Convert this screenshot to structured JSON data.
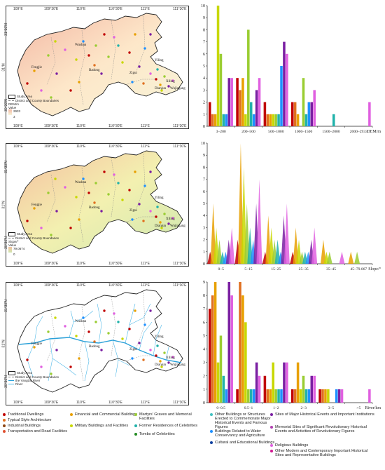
{
  "maps": [
    {
      "id": "dem",
      "top_ticks": [
        "109°E",
        "109°30'E",
        "110°E",
        "110°30'E",
        "111°E",
        "111°30'E"
      ],
      "bottom_ticks": [
        "109°E",
        "109°30'E",
        "110°E",
        "110°30'E",
        "111°E",
        "111°30'E"
      ],
      "left_ticks": [
        "31°30'N",
        "31°N",
        "30°30'N"
      ],
      "place_names": [
        "Wushan",
        "Fengjie",
        "Badong",
        "Zigui",
        "Yiling",
        "Dianjun",
        "Xiling",
        "Wujiagang"
      ],
      "legend": [
        "Study Area",
        "District and County Boundaries",
        "DEM/m",
        "Value",
        "2933",
        "3"
      ],
      "ramp": [
        "#f3b7a4",
        "#fde7c9",
        "#f7f5d9"
      ]
    },
    {
      "id": "slope",
      "top_ticks": [
        "109°E",
        "109°30'E",
        "110°E",
        "110°30'E",
        "111°E",
        "111°30'E"
      ],
      "bottom_ticks": [
        "109°E",
        "109°30'E",
        "110°E",
        "110°30'E",
        "111°E",
        "111°30'E"
      ],
      "left_ticks": [
        "31°30'N",
        "31°N",
        "30°30'N"
      ],
      "place_names": [
        "Wushan",
        "Fengjie",
        "Badong",
        "Zigui",
        "Yiling",
        "Dianjun",
        "Xiling",
        "Wujiagang"
      ],
      "legend": [
        "Study Area",
        "District and County Boundaries",
        "Slope/°",
        "Value",
        "79.0674",
        "0"
      ],
      "ramp": [
        "#f5c0a0",
        "#f3f0b0",
        "#cfe8b0"
      ]
    },
    {
      "id": "river",
      "top_ticks": [
        "109°E",
        "109°30'E",
        "110°E",
        "110°30'E",
        "111°E",
        "111°30'E"
      ],
      "bottom_ticks": [
        "109°E",
        "109°30'E",
        "110°E",
        "110°30'E",
        "111°E",
        "111°30'E"
      ],
      "left_ticks": [
        "31°30'N",
        "31°N",
        "30°30'N"
      ],
      "place_names": [
        "Wushan",
        "Fengjie",
        "Badong",
        "Zigui",
        "Yiling",
        "Dianjun",
        "Xiling",
        "Wujiagang"
      ],
      "legend": [
        "Study Area",
        "District and County Boundaries",
        "the Yangtze River",
        "River"
      ]
    }
  ],
  "chart_data": [
    {
      "type": "bar",
      "xlabel": "DEM/m",
      "ylim": [
        0,
        10
      ],
      "yticks": [
        0,
        1,
        2,
        3,
        4,
        5,
        6,
        7,
        8,
        9,
        10
      ],
      "categories": [
        "3–200",
        "200–500",
        "500–1000",
        "1000–1500",
        "1500–2000",
        "2000–2933"
      ],
      "series": [
        {
          "color": "#c00000",
          "values": [
            2,
            4,
            2,
            2,
            0,
            0
          ]
        },
        {
          "color": "#e07020",
          "values": [
            1,
            3,
            1,
            2,
            0,
            0
          ]
        },
        {
          "color": "#e8a000",
          "values": [
            1,
            4,
            1,
            1,
            0,
            0
          ]
        },
        {
          "color": "#c8d800",
          "values": [
            10,
            1,
            1,
            0,
            0,
            0
          ]
        },
        {
          "color": "#9acd32",
          "values": [
            6,
            8,
            1,
            4,
            0,
            0
          ]
        },
        {
          "color": "#20b2aa",
          "values": [
            1,
            2,
            1,
            1,
            1,
            0
          ]
        },
        {
          "color": "#1e90ff",
          "values": [
            1,
            1,
            5,
            2,
            0,
            0
          ]
        },
        {
          "color": "#7a1fa2",
          "values": [
            4,
            3,
            7,
            2,
            0,
            0
          ]
        },
        {
          "color": "#e060e0",
          "values": [
            4,
            4,
            6,
            3,
            0,
            2
          ]
        }
      ]
    },
    {
      "type": "area",
      "xlabel": "Slope/°",
      "ylim": [
        0,
        10
      ],
      "yticks": [
        0,
        1,
        2,
        3,
        4,
        5,
        6,
        7,
        8,
        9,
        10
      ],
      "categories": [
        "0–5",
        "5–15",
        "15–25",
        "25–35",
        "35–45",
        "45–79.067"
      ],
      "series": [
        {
          "color": "#c00000",
          "values": [
            1,
            2,
            1,
            1,
            0,
            0
          ]
        },
        {
          "color": "#e8a000",
          "values": [
            5,
            10,
            4,
            3,
            2,
            1
          ]
        },
        {
          "color": "#c8d800",
          "values": [
            3,
            8,
            3,
            2,
            1,
            0
          ]
        },
        {
          "color": "#9acd32",
          "values": [
            2,
            5,
            2,
            1,
            1,
            1
          ]
        },
        {
          "color": "#20b2aa",
          "values": [
            1,
            3,
            2,
            1,
            0,
            0
          ]
        },
        {
          "color": "#1e90ff",
          "values": [
            1,
            2,
            1,
            1,
            0,
            0
          ]
        },
        {
          "color": "#7a1fa2",
          "values": [
            2,
            5,
            4,
            2,
            0,
            0
          ]
        },
        {
          "color": "#e060e0",
          "values": [
            3,
            7,
            5,
            3,
            1,
            0
          ]
        }
      ]
    },
    {
      "type": "bar",
      "xlabel": "River/km",
      "ylim": [
        0,
        9
      ],
      "yticks": [
        0,
        1,
        2,
        3,
        4,
        5,
        6,
        7,
        8,
        9
      ],
      "categories": [
        "0–0.5",
        "0.5–1",
        "1–2",
        "2–3",
        "3–5",
        ">5"
      ],
      "series": [
        {
          "color": "#c00000",
          "values": [
            7,
            1,
            2,
            1,
            1,
            0
          ]
        },
        {
          "color": "#e07020",
          "values": [
            8,
            9,
            1,
            1,
            1,
            0
          ]
        },
        {
          "color": "#e8a000",
          "values": [
            9,
            8,
            1,
            3,
            1,
            0
          ]
        },
        {
          "color": "#c8d800",
          "values": [
            3,
            6,
            3,
            1,
            1,
            0
          ]
        },
        {
          "color": "#9acd32",
          "values": [
            5,
            1,
            1,
            2,
            0,
            0
          ]
        },
        {
          "color": "#20b2aa",
          "values": [
            2,
            1,
            1,
            1,
            0,
            0
          ]
        },
        {
          "color": "#1e90ff",
          "values": [
            1,
            1,
            1,
            1,
            1,
            0
          ]
        },
        {
          "color": "#7a1fa2",
          "values": [
            9,
            3,
            3,
            2,
            1,
            0
          ]
        },
        {
          "color": "#e060e0",
          "values": [
            8,
            2,
            3,
            2,
            1,
            1
          ]
        }
      ]
    }
  ],
  "legend": [
    {
      "label": "Traditional Dwellings",
      "color": "#c00000"
    },
    {
      "label": "Typical Style Architecture",
      "color": "#e07020"
    },
    {
      "label": "Industrial Buildings",
      "color": "#8b4513"
    },
    {
      "label": "Transportation and Road Facilities",
      "color": "#e05030"
    },
    {
      "label": "Financial and Commercial Buildings",
      "color": "#e8a000"
    },
    {
      "label": "Military Buildings and Facilities",
      "color": "#c8d800"
    },
    {
      "label": "Martyrs' Graves and Memorial Facilities",
      "color": "#9acd32"
    },
    {
      "label": "Former Residences of Celebrities",
      "color": "#20b2aa"
    },
    {
      "label": "Tombs of Celebrities",
      "color": "#228b22"
    },
    {
      "label": "Other Buildings or Structures Erected to Commemorate Major Historical Events and Famous Figures",
      "color": "#40c0c0"
    },
    {
      "label": "Buildings Related to Water Conservancy and Agriculture",
      "color": "#1e90ff"
    },
    {
      "label": "Cultural and Educational Buildings",
      "color": "#1040a0"
    },
    {
      "label": "Sites of Major Historical Events and Important Institutions",
      "color": "#7a1fa2"
    },
    {
      "label": "Memorial Sites of Significant Revolutionary Historical Events and Activities of Revolutionary Figures",
      "color": "#b040b0"
    },
    {
      "label": "Religious Buildings",
      "color": "#e060e0"
    },
    {
      "label": "Other Modern and Contemporary Important Historical Sites and Representative Buildings",
      "color": "#d01890"
    }
  ]
}
